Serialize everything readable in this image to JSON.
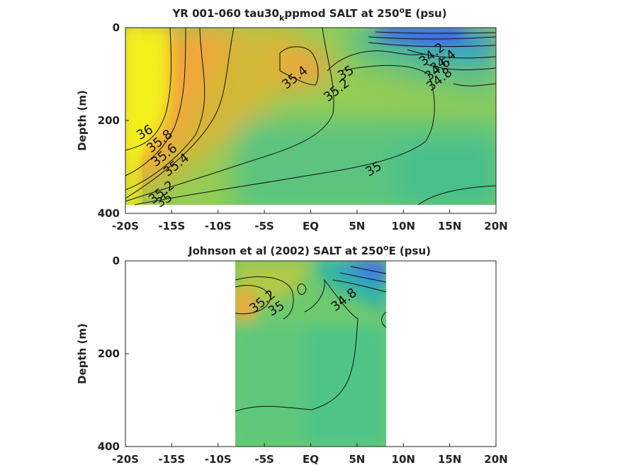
{
  "chart_data": [
    {
      "type": "heatmap",
      "title": "YR 001-060 tau30",
      "title_sub": "k",
      "title_tail": "ppmod SALT at 250",
      "title_sup": "o",
      "title_end": "E (psu)",
      "ylabel": "Depth (m)",
      "xlim": [
        -20,
        20
      ],
      "ylim": [
        0,
        400
      ],
      "y_reversed": true,
      "data_xrange": [
        -20,
        20
      ],
      "data_ydepth": 380,
      "x_ticks": [
        "-20S",
        "-15S",
        "-10S",
        "-5S",
        "EQ",
        "5N",
        "10N",
        "15N",
        "20N"
      ],
      "y_ticks": [
        "0",
        "200",
        "400"
      ],
      "contour_labels": [
        {
          "text": "36",
          "x": -17.9,
          "y": 226
        },
        {
          "text": "35.8",
          "x": -16.3,
          "y": 245
        },
        {
          "text": "35.6",
          "x": -15.8,
          "y": 275
        },
        {
          "text": "35.4",
          "x": -14.5,
          "y": 296
        },
        {
          "text": "35.2",
          "x": -16.1,
          "y": 355
        },
        {
          "text": "35",
          "x": -15.8,
          "y": 372
        },
        {
          "text": "35.4",
          "x": -1.7,
          "y": 108
        },
        {
          "text": "35",
          "x": 3.8,
          "y": 98
        },
        {
          "text": "35.2",
          "x": 2.8,
          "y": 135
        },
        {
          "text": "35",
          "x": 6.8,
          "y": 305
        },
        {
          "text": "34.2",
          "x": 13.1,
          "y": 58
        },
        {
          "text": "34.4",
          "x": 14.3,
          "y": 73
        },
        {
          "text": "34.6",
          "x": 13.7,
          "y": 90
        },
        {
          "text": "34.8",
          "x": 13.9,
          "y": 112
        }
      ]
    },
    {
      "type": "heatmap",
      "title": "Johnson et al (2002) SALT at 250",
      "title_sup": "o",
      "title_end": "E (psu)",
      "ylabel": "Depth (m)",
      "xlim": [
        -20,
        20
      ],
      "ylim": [
        0,
        400
      ],
      "y_reversed": true,
      "data_xrange": [
        -8,
        8.3
      ],
      "data_ydepth": 400,
      "x_ticks": [
        "-20S",
        "-15S",
        "-10S",
        "-5S",
        "EQ",
        "5N",
        "10N",
        "15N",
        "20N"
      ],
      "y_ticks": [
        "0",
        "200",
        "400"
      ],
      "contour_labels": [
        {
          "text": "35.2",
          "x": -5.2,
          "y": 88
        },
        {
          "text": "35",
          "x": -3.7,
          "y": 103
        },
        {
          "text": "34.8",
          "x": 3.6,
          "y": 84
        }
      ]
    }
  ]
}
